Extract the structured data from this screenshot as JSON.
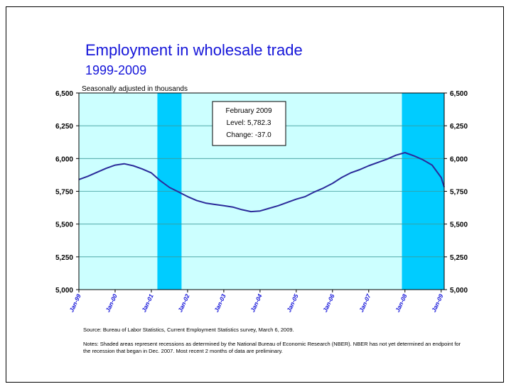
{
  "title": "Employment in wholesale trade",
  "subtitle": "1999-2009",
  "top_note": "Seasonally adjusted in thousands",
  "callout": {
    "line1": "February 2009",
    "line2": "Level: 5,782.3",
    "line3": "Change: -37.0"
  },
  "source": "Source:  Bureau of Labor Statistics, Current Employment Statistics survey, March 6, 2009.",
  "notes": "Notes: Shaded areas represent recessions as determined by the National Bureau of Economic Research (NBER). NBER has not yet determined an endpoint for the recession that began in Dec. 2007. Most recent 2 months of data are preliminary.",
  "colors": {
    "plot_bg": "#ccffff",
    "recession": "#00ccff",
    "line": "#2b2b9a",
    "title": "#1515d9",
    "tick_label_x": "#1515d9"
  },
  "chart_data": {
    "type": "line",
    "ylim": [
      5000,
      6500
    ],
    "yticks": [
      5000,
      5250,
      5500,
      5750,
      6000,
      6250,
      6500
    ],
    "ytick_labels": [
      "5,000",
      "5,250",
      "5,500",
      "5,750",
      "6,000",
      "6,250",
      "6,500"
    ],
    "x_range": [
      "1999-01",
      "2009-02"
    ],
    "xtick_labels": [
      "Jan-99",
      "Jan-00",
      "Jan-01",
      "Jan-02",
      "Jan-03",
      "Jan-04",
      "Jan-05",
      "Jan-06",
      "Jan-07",
      "Jan-08",
      "Jan-09"
    ],
    "recessions": [
      {
        "start": "2001-03",
        "end": "2001-11"
      },
      {
        "start": "2007-12",
        "end": "2009-02"
      }
    ],
    "grid": true,
    "secondary_y_axis": true,
    "series": [
      {
        "x": [
          "1999-01",
          "1999-04",
          "1999-07",
          "1999-10",
          "2000-01",
          "2000-04",
          "2000-07",
          "2000-10",
          "2001-01",
          "2001-04",
          "2001-07",
          "2001-10",
          "2002-01",
          "2002-04",
          "2002-07",
          "2002-10",
          "2003-01",
          "2003-04",
          "2003-07",
          "2003-10",
          "2004-01",
          "2004-04",
          "2004-07",
          "2004-10",
          "2005-01",
          "2005-04",
          "2005-07",
          "2005-10",
          "2006-01",
          "2006-04",
          "2006-07",
          "2006-10",
          "2007-01",
          "2007-04",
          "2007-07",
          "2007-10",
          "2008-01",
          "2008-04",
          "2008-07",
          "2008-10",
          "2009-01",
          "2009-02"
        ],
        "values": [
          5840,
          5865,
          5895,
          5925,
          5950,
          5960,
          5945,
          5920,
          5890,
          5830,
          5780,
          5745,
          5710,
          5680,
          5660,
          5650,
          5640,
          5630,
          5610,
          5595,
          5600,
          5620,
          5640,
          5665,
          5690,
          5710,
          5745,
          5775,
          5810,
          5855,
          5890,
          5915,
          5945,
          5970,
          5995,
          6025,
          6045,
          6020,
          5990,
          5950,
          5855,
          5782
        ]
      }
    ]
  }
}
